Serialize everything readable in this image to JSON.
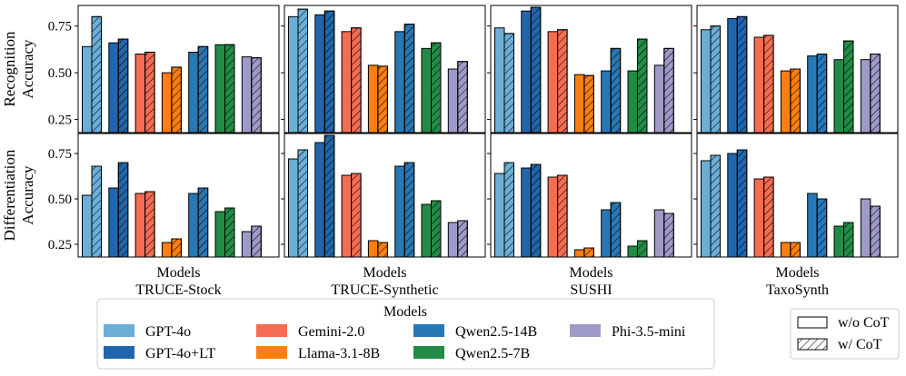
{
  "chart_data": {
    "type": "bar",
    "row_titles": [
      "Recognition\nAccuracy",
      "Differentiation\nAccuracy"
    ],
    "row_yticks": [
      [
        0.25,
        0.5,
        0.75
      ],
      [
        0.25,
        0.5,
        0.75
      ]
    ],
    "row_ytick_labels": [
      [
        "0.25",
        "0.50",
        "0.75"
      ],
      [
        "0.25",
        "0.50",
        "0.75"
      ]
    ],
    "row_ylim": [
      [
        0.18,
        0.86
      ],
      [
        0.18,
        0.86
      ]
    ],
    "columns": [
      {
        "xlabel": "Models",
        "dataset": "TRUCE-Stock"
      },
      {
        "xlabel": "Models",
        "dataset": "TRUCE-Synthetic"
      },
      {
        "xlabel": "Models",
        "dataset": "SUSHI"
      },
      {
        "xlabel": "Models",
        "dataset": "TaxoSynth"
      }
    ],
    "models": [
      {
        "name": "GPT-4o",
        "color": "#6baed6"
      },
      {
        "name": "GPT-4o+LT",
        "color": "#2166ac"
      },
      {
        "name": "Gemini-2.0",
        "color": "#f46d53"
      },
      {
        "name": "Llama-3.1-8B",
        "color": "#ff7f0e"
      },
      {
        "name": "Qwen2.5-14B",
        "color": "#2878b5"
      },
      {
        "name": "Qwen2.5-7B",
        "color": "#238b45"
      },
      {
        "name": "Phi-3.5-mini",
        "color": "#9e9ac8"
      }
    ],
    "series": [
      {
        "metric": "Recognition Accuracy",
        "panels": [
          {
            "dataset": "TRUCE-Stock",
            "without_cot": [
              0.64,
              0.66,
              0.6,
              0.5,
              0.61,
              0.65,
              0.585
            ],
            "with_cot": [
              0.8,
              0.68,
              0.61,
              0.53,
              0.64,
              0.65,
              0.58
            ]
          },
          {
            "dataset": "TRUCE-Synthetic",
            "without_cot": [
              0.8,
              0.81,
              0.72,
              0.54,
              0.72,
              0.63,
              0.52
            ],
            "with_cot": [
              0.84,
              0.83,
              0.74,
              0.535,
              0.76,
              0.66,
              0.56
            ]
          },
          {
            "dataset": "SUSHI",
            "without_cot": [
              0.74,
              0.83,
              0.72,
              0.49,
              0.51,
              0.51,
              0.54
            ],
            "with_cot": [
              0.71,
              0.85,
              0.73,
              0.485,
              0.63,
              0.68,
              0.63
            ]
          },
          {
            "dataset": "TaxoSynth",
            "without_cot": [
              0.73,
              0.79,
              0.69,
              0.51,
              0.59,
              0.57,
              0.57
            ],
            "with_cot": [
              0.75,
              0.8,
              0.7,
              0.52,
              0.6,
              0.67,
              0.6
            ]
          }
        ]
      },
      {
        "metric": "Differentiation Accuracy",
        "panels": [
          {
            "dataset": "TRUCE-Stock",
            "without_cot": [
              0.52,
              0.56,
              0.53,
              0.26,
              0.53,
              0.43,
              0.32
            ],
            "with_cot": [
              0.68,
              0.7,
              0.54,
              0.28,
              0.56,
              0.45,
              0.35
            ]
          },
          {
            "dataset": "TRUCE-Synthetic",
            "without_cot": [
              0.72,
              0.81,
              0.63,
              0.27,
              0.68,
              0.47,
              0.37
            ],
            "with_cot": [
              0.77,
              0.85,
              0.64,
              0.26,
              0.7,
              0.49,
              0.38
            ]
          },
          {
            "dataset": "SUSHI",
            "without_cot": [
              0.64,
              0.67,
              0.62,
              0.22,
              0.44,
              0.24,
              0.44
            ],
            "with_cot": [
              0.7,
              0.69,
              0.63,
              0.23,
              0.48,
              0.27,
              0.42
            ]
          },
          {
            "dataset": "TaxoSynth",
            "without_cot": [
              0.71,
              0.75,
              0.61,
              0.26,
              0.53,
              0.35,
              0.5
            ],
            "with_cot": [
              0.74,
              0.77,
              0.62,
              0.26,
              0.5,
              0.37,
              0.46
            ]
          }
        ]
      }
    ],
    "legend": {
      "title": "Models",
      "location": "bottom-center",
      "columns": 4
    },
    "hatch_legend": {
      "without": "w/o CoT",
      "with": "w/ CoT",
      "location": "bottom-right"
    },
    "grid": false
  }
}
